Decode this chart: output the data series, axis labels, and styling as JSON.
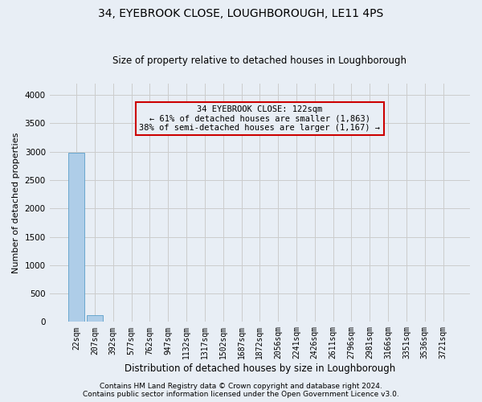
{
  "title": "34, EYEBROOK CLOSE, LOUGHBOROUGH, LE11 4PS",
  "subtitle": "Size of property relative to detached houses in Loughborough",
  "xlabel": "Distribution of detached houses by size in Loughborough",
  "ylabel": "Number of detached properties",
  "footer1": "Contains HM Land Registry data © Crown copyright and database right 2024.",
  "footer2": "Contains public sector information licensed under the Open Government Licence v3.0.",
  "annotation_line1": "34 EYEBROOK CLOSE: 122sqm",
  "annotation_line2": "← 61% of detached houses are smaller (1,863)",
  "annotation_line3": "38% of semi-detached houses are larger (1,167) →",
  "bar_labels": [
    "22sqm",
    "207sqm",
    "392sqm",
    "577sqm",
    "762sqm",
    "947sqm",
    "1132sqm",
    "1317sqm",
    "1502sqm",
    "1687sqm",
    "1872sqm",
    "2056sqm",
    "2241sqm",
    "2426sqm",
    "2611sqm",
    "2796sqm",
    "2981sqm",
    "3166sqm",
    "3351sqm",
    "3536sqm",
    "3721sqm"
  ],
  "bar_values": [
    2980,
    120,
    5,
    2,
    1,
    1,
    1,
    1,
    0,
    0,
    0,
    0,
    0,
    0,
    0,
    0,
    0,
    0,
    0,
    0,
    0
  ],
  "bar_color": "#aecde8",
  "bar_edge_color": "#5a9ec9",
  "ylim": [
    0,
    4200
  ],
  "yticks": [
    0,
    500,
    1000,
    1500,
    2000,
    2500,
    3000,
    3500,
    4000
  ],
  "grid_color": "#cccccc",
  "bg_color": "#e8eef5",
  "annotation_box_color": "#cc0000",
  "title_fontsize": 10,
  "subtitle_fontsize": 8.5,
  "tick_fontsize": 7,
  "ylabel_fontsize": 8,
  "xlabel_fontsize": 8.5,
  "footer_fontsize": 6.5,
  "annotation_fontsize": 7.5
}
